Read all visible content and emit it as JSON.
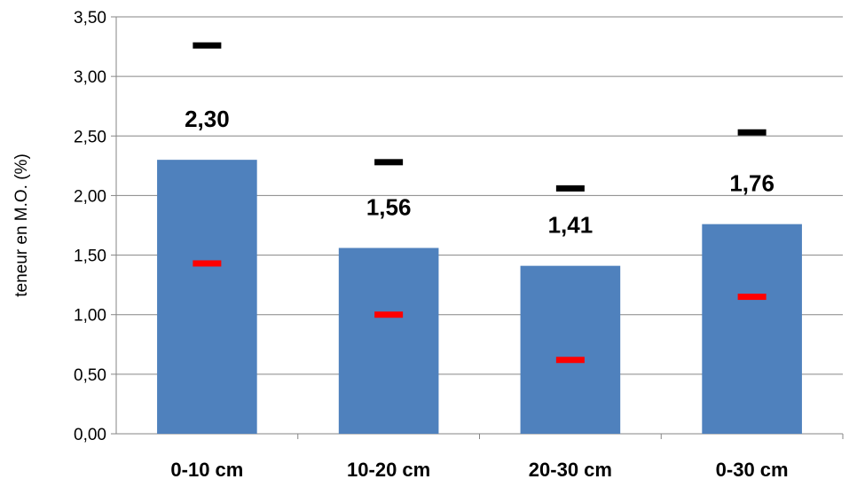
{
  "chart_data": {
    "type": "bar",
    "title": "",
    "xlabel": "",
    "ylabel": "teneur en M.O. (%)",
    "ylim": [
      0,
      3.5
    ],
    "ytick_step": 0.5,
    "ytick_labels": [
      "0,00",
      "0,50",
      "1,00",
      "1,50",
      "2,00",
      "2,50",
      "3,00",
      "3,50"
    ],
    "grid": true,
    "legend": "none",
    "categories": [
      "0-10 cm",
      "10-20 cm",
      "20-30 cm",
      "0-30 cm"
    ],
    "series": [
      {
        "values": [
          2.3,
          1.56,
          1.41,
          1.76
        ],
        "data_labels": [
          "2,30",
          "1,56",
          "1,41",
          "1,76"
        ],
        "color": "#4F81BD"
      }
    ],
    "max_markers": {
      "values": [
        3.26,
        2.28,
        2.06,
        2.53
      ],
      "color": "#000000"
    },
    "min_markers": {
      "values": [
        1.43,
        1.0,
        0.62,
        1.15
      ],
      "color": "#FF0000"
    },
    "colors": {
      "bar": "#4F81BD",
      "grid": "#868686",
      "axis": "#868686",
      "max_marker": "#000000",
      "min_marker": "#FF0000"
    }
  }
}
